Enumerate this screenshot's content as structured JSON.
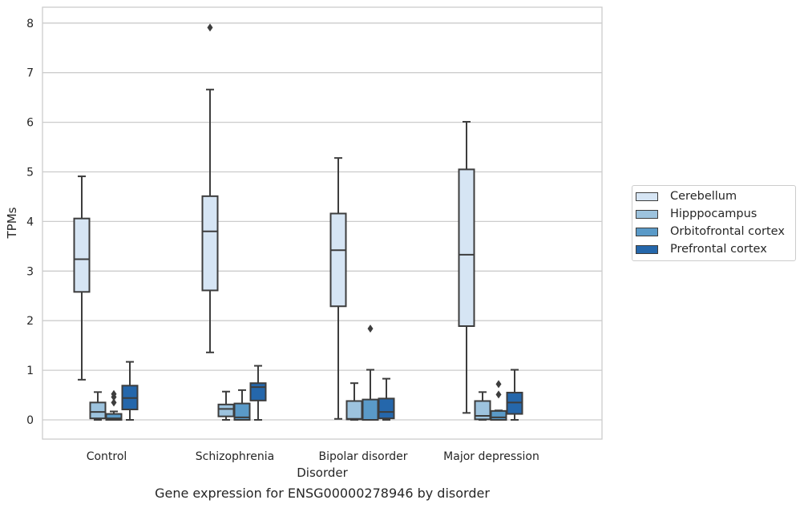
{
  "chart_data": {
    "type": "boxplot",
    "title": "",
    "caption": "Gene expression for ENSG00000278946 by disorder",
    "xlabel": "Disorder",
    "ylabel": "TPMs",
    "ylim": [
      -0.4,
      8.3
    ],
    "yticks": [
      0,
      1,
      2,
      3,
      4,
      5,
      6,
      7,
      8
    ],
    "grid": true,
    "legend_placement": "right",
    "categories": [
      "Control",
      "Schizophrenia",
      "Bipolar disorder",
      "Major depression"
    ],
    "series": [
      {
        "name": "Cerebellum",
        "color": "#d6e5f4",
        "boxes": [
          {
            "whisker_low": 0.81,
            "q1": 2.58,
            "median": 3.24,
            "q3": 4.06,
            "whisker_high": 4.91,
            "outliers": []
          },
          {
            "whisker_low": 1.36,
            "q1": 2.61,
            "median": 3.8,
            "q3": 4.51,
            "whisker_high": 6.66,
            "outliers": [
              7.91
            ]
          },
          {
            "whisker_low": 0.02,
            "q1": 2.29,
            "median": 3.42,
            "q3": 4.16,
            "whisker_high": 5.28,
            "outliers": []
          },
          {
            "whisker_low": 0.14,
            "q1": 1.89,
            "median": 3.33,
            "q3": 5.05,
            "whisker_high": 6.01,
            "outliers": []
          }
        ]
      },
      {
        "name": "Hipppocampus",
        "color": "#9dc3de",
        "boxes": [
          {
            "whisker_low": 0.0,
            "q1": 0.03,
            "median": 0.16,
            "q3": 0.35,
            "whisker_high": 0.56,
            "outliers": []
          },
          {
            "whisker_low": 0.0,
            "q1": 0.07,
            "median": 0.22,
            "q3": 0.31,
            "whisker_high": 0.57,
            "outliers": []
          },
          {
            "whisker_low": 0.0,
            "q1": 0.01,
            "median": 0.02,
            "q3": 0.38,
            "whisker_high": 0.74,
            "outliers": []
          },
          {
            "whisker_low": 0.0,
            "q1": 0.01,
            "median": 0.08,
            "q3": 0.38,
            "whisker_high": 0.56,
            "outliers": []
          }
        ]
      },
      {
        "name": "Orbitofrontal cortex",
        "color": "#5a9ac8",
        "boxes": [
          {
            "whisker_low": 0.0,
            "q1": 0.0,
            "median": 0.03,
            "q3": 0.12,
            "whisker_high": 0.17,
            "outliers": [
              0.35,
              0.46,
              0.52
            ]
          },
          {
            "whisker_low": 0.0,
            "q1": 0.0,
            "median": 0.05,
            "q3": 0.33,
            "whisker_high": 0.6,
            "outliers": []
          },
          {
            "whisker_low": 0.0,
            "q1": 0.0,
            "median": 0.0,
            "q3": 0.41,
            "whisker_high": 1.01,
            "outliers": [
              1.84
            ]
          },
          {
            "whisker_low": 0.0,
            "q1": 0.0,
            "median": 0.05,
            "q3": 0.18,
            "whisker_high": 0.19,
            "outliers": [
              0.51,
              0.72
            ]
          }
        ]
      },
      {
        "name": "Prefrontal cortex",
        "color": "#2567ab",
        "boxes": [
          {
            "whisker_low": 0.0,
            "q1": 0.21,
            "median": 0.44,
            "q3": 0.69,
            "whisker_high": 1.17,
            "outliers": []
          },
          {
            "whisker_low": 0.0,
            "q1": 0.39,
            "median": 0.66,
            "q3": 0.74,
            "whisker_high": 1.09,
            "outliers": []
          },
          {
            "whisker_low": 0.0,
            "q1": 0.03,
            "median": 0.16,
            "q3": 0.43,
            "whisker_high": 0.83,
            "outliers": []
          },
          {
            "whisker_low": 0.0,
            "q1": 0.12,
            "median": 0.35,
            "q3": 0.55,
            "whisker_high": 1.01,
            "outliers": []
          }
        ]
      }
    ]
  }
}
